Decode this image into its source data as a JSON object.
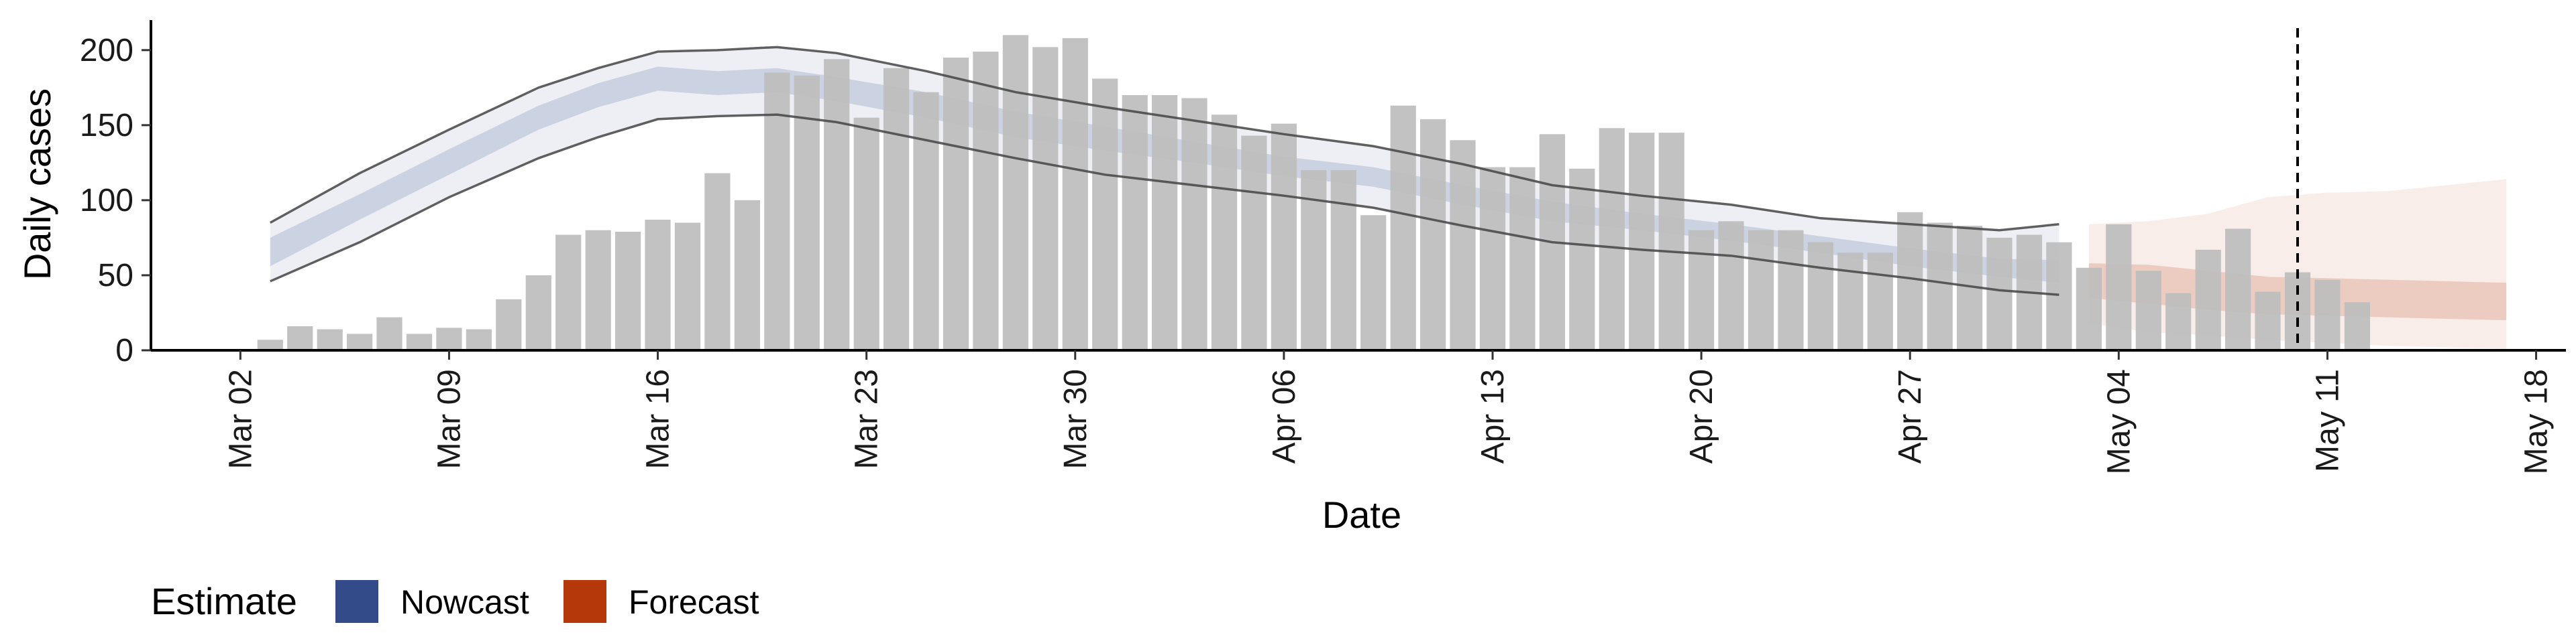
{
  "chart_data": {
    "type": "bar",
    "xlabel": "Date",
    "ylabel": "Daily cases",
    "x_domain": [
      "2020-02-28",
      "2020-05-19"
    ],
    "ylim": [
      0,
      220
    ],
    "y_ticks": [
      0,
      50,
      100,
      150,
      200
    ],
    "x_ticks": [
      {
        "date": "2020-03-02",
        "label": "Mar 02"
      },
      {
        "date": "2020-03-09",
        "label": "Mar 09"
      },
      {
        "date": "2020-03-16",
        "label": "Mar 16"
      },
      {
        "date": "2020-03-23",
        "label": "Mar 23"
      },
      {
        "date": "2020-03-30",
        "label": "Mar 30"
      },
      {
        "date": "2020-04-06",
        "label": "Apr 06"
      },
      {
        "date": "2020-04-13",
        "label": "Apr 13"
      },
      {
        "date": "2020-04-20",
        "label": "Apr 20"
      },
      {
        "date": "2020-04-27",
        "label": "Apr 27"
      },
      {
        "date": "2020-05-04",
        "label": "May 04"
      },
      {
        "date": "2020-05-11",
        "label": "May 11"
      },
      {
        "date": "2020-05-18",
        "label": "May 18"
      }
    ],
    "bars": {
      "start_date": "2020-03-03",
      "values": [
        7,
        16,
        14,
        11,
        22,
        11,
        15,
        14,
        34,
        50,
        77,
        80,
        79,
        87,
        85,
        118,
        100,
        185,
        183,
        194,
        155,
        188,
        172,
        195,
        199,
        210,
        202,
        208,
        181,
        170,
        170,
        168,
        157,
        143,
        151,
        120,
        120,
        90,
        163,
        154,
        140,
        122,
        122,
        144,
        121,
        148,
        145,
        145,
        80,
        86,
        80,
        80,
        72,
        65,
        65,
        92,
        85,
        83,
        75,
        77,
        72,
        55,
        84,
        53,
        38,
        67,
        81,
        39,
        52,
        47,
        32
      ],
      "color": "#bdbdbd"
    },
    "vline_date": "2020-05-10",
    "series": [
      {
        "name": "Nowcast",
        "color": "#344b8a",
        "dates": [
          "2020-03-03",
          "2020-03-06",
          "2020-03-09",
          "2020-03-12",
          "2020-03-14",
          "2020-03-16",
          "2020-03-18",
          "2020-03-20",
          "2020-03-22",
          "2020-03-25",
          "2020-03-28",
          "2020-03-31",
          "2020-04-03",
          "2020-04-06",
          "2020-04-09",
          "2020-04-12",
          "2020-04-15",
          "2020-04-18",
          "2020-04-21",
          "2020-04-24",
          "2020-04-27",
          "2020-04-30",
          "2020-05-02"
        ],
        "median": [
          65,
          95,
          125,
          155,
          170,
          182,
          178,
          180,
          174,
          163,
          150,
          140,
          131,
          122,
          115,
          103,
          92,
          85,
          78,
          70,
          62,
          55,
          52
        ],
        "inner_lower": [
          56,
          87,
          117,
          147,
          162,
          173,
          170,
          172,
          166,
          155,
          142,
          133,
          125,
          116,
          109,
          97,
          86,
          80,
          73,
          65,
          56,
          49,
          45
        ],
        "inner_upper": [
          75,
          104,
          134,
          163,
          178,
          189,
          186,
          188,
          182,
          172,
          159,
          149,
          139,
          129,
          122,
          110,
          99,
          91,
          84,
          76,
          68,
          61,
          60
        ],
        "outer_lower": [
          46,
          72,
          102,
          128,
          142,
          154,
          156,
          157,
          152,
          140,
          128,
          117,
          110,
          103,
          95,
          83,
          72,
          67,
          63,
          55,
          48,
          40,
          37
        ],
        "outer_upper": [
          85,
          118,
          147,
          175,
          188,
          199,
          200,
          202,
          198,
          186,
          172,
          162,
          153,
          144,
          136,
          124,
          110,
          103,
          97,
          88,
          84,
          80,
          84
        ]
      },
      {
        "name": "Forecast",
        "color": "#b5380a",
        "dates": [
          "2020-05-03",
          "2020-05-05",
          "2020-05-07",
          "2020-05-09",
          "2020-05-11",
          "2020-05-13",
          "2020-05-15",
          "2020-05-17"
        ],
        "median": [
          46,
          43,
          37,
          33,
          33,
          32,
          31,
          30
        ],
        "inner_lower": [
          35,
          31,
          27,
          24,
          23,
          22,
          21,
          20
        ],
        "inner_upper": [
          58,
          57,
          53,
          49,
          48,
          47,
          46,
          45
        ],
        "outer_lower": [
          18,
          12,
          10,
          7,
          5,
          3,
          2,
          1
        ],
        "outer_upper": [
          84,
          86,
          91,
          102,
          105,
          106,
          110,
          114
        ]
      }
    ],
    "legend": {
      "title": "Estimate",
      "position": "bottom-left",
      "items": [
        {
          "label": "Nowcast",
          "color": "#344b8a"
        },
        {
          "label": "Forecast",
          "color": "#b5380a"
        }
      ]
    }
  }
}
